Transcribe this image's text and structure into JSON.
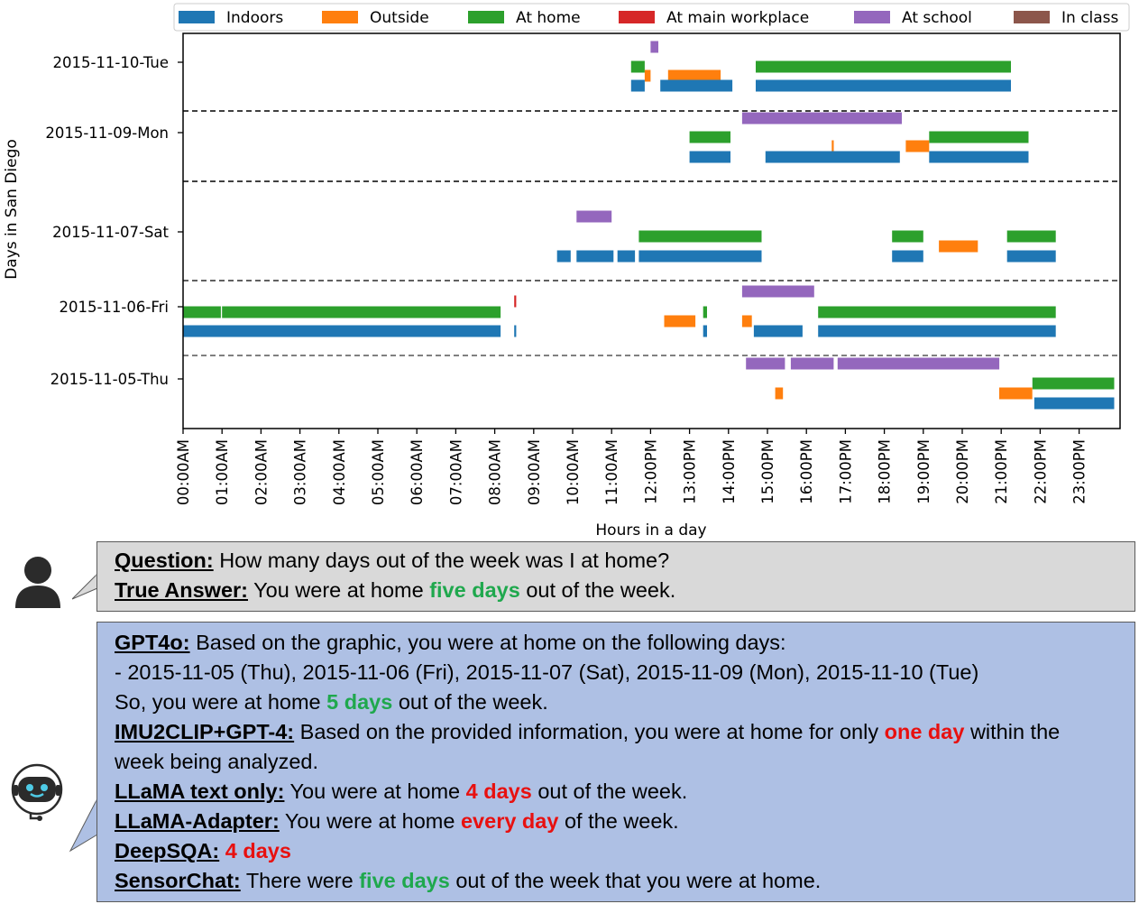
{
  "chart_data": {
    "type": "timeline",
    "ylabel": "Days in San Diego",
    "xlabel": "Hours in a day",
    "xlim": [
      0,
      24
    ],
    "x_ticks": [
      "00:00AM",
      "01:00AM",
      "02:00AM",
      "03:00AM",
      "04:00AM",
      "05:00AM",
      "06:00AM",
      "07:00AM",
      "08:00AM",
      "09:00AM",
      "10:00AM",
      "11:00AM",
      "12:00PM",
      "13:00PM",
      "14:00PM",
      "15:00PM",
      "16:00PM",
      "17:00PM",
      "18:00PM",
      "19:00PM",
      "20:00PM",
      "21:00PM",
      "22:00PM",
      "23:00PM"
    ],
    "days": [
      "2015-11-10-Tue",
      "2015-11-09-Mon",
      "2015-11-07-Sat",
      "2015-11-06-Fri",
      "2015-11-05-Thu"
    ],
    "legend": [
      {
        "name": "Indoors",
        "color": "#1f77b4"
      },
      {
        "name": "Outside",
        "color": "#ff7f0e"
      },
      {
        "name": "At home",
        "color": "#2ca02c"
      },
      {
        "name": "At main workplace",
        "color": "#d62728"
      },
      {
        "name": "At school",
        "color": "#9467bd"
      },
      {
        "name": "In class",
        "color": "#8c564b"
      }
    ],
    "legend_position": "top",
    "series": [
      {
        "day": "2015-11-10-Tue",
        "label": "At school",
        "intervals": [
          [
            12.0,
            12.2
          ]
        ]
      },
      {
        "day": "2015-11-10-Tue",
        "label": "At home",
        "intervals": [
          [
            11.5,
            11.85
          ],
          [
            14.7,
            21.25
          ]
        ]
      },
      {
        "day": "2015-11-10-Tue",
        "label": "Outside",
        "intervals": [
          [
            11.85,
            12.0
          ],
          [
            12.45,
            13.8
          ]
        ]
      },
      {
        "day": "2015-11-10-Tue",
        "label": "Indoors",
        "intervals": [
          [
            11.5,
            11.85
          ],
          [
            12.25,
            14.1
          ],
          [
            14.7,
            21.25
          ]
        ]
      },
      {
        "day": "2015-11-09-Mon",
        "label": "At school",
        "intervals": [
          [
            14.35,
            18.45
          ]
        ]
      },
      {
        "day": "2015-11-09-Mon",
        "label": "At home",
        "intervals": [
          [
            13.0,
            14.05
          ],
          [
            19.15,
            21.7
          ]
        ]
      },
      {
        "day": "2015-11-09-Mon",
        "label": "Outside",
        "intervals": [
          [
            16.65,
            16.7
          ],
          [
            18.55,
            19.15
          ]
        ]
      },
      {
        "day": "2015-11-09-Mon",
        "label": "Indoors",
        "intervals": [
          [
            13.0,
            14.05
          ],
          [
            14.95,
            18.4
          ],
          [
            19.15,
            21.7
          ]
        ]
      },
      {
        "day": "2015-11-07-Sat",
        "label": "At school",
        "intervals": [
          [
            10.1,
            11.0
          ]
        ]
      },
      {
        "day": "2015-11-07-Sat",
        "label": "At home",
        "intervals": [
          [
            11.7,
            14.85
          ],
          [
            18.2,
            19.0
          ],
          [
            21.15,
            22.4
          ]
        ]
      },
      {
        "day": "2015-11-07-Sat",
        "label": "Outside",
        "intervals": [
          [
            19.4,
            20.4
          ]
        ]
      },
      {
        "day": "2015-11-07-Sat",
        "label": "Indoors",
        "intervals": [
          [
            9.6,
            9.95
          ],
          [
            10.1,
            11.05
          ],
          [
            11.15,
            11.6
          ],
          [
            11.7,
            14.85
          ],
          [
            18.2,
            19.0
          ],
          [
            21.15,
            22.4
          ]
        ]
      },
      {
        "day": "2015-11-06-Fri",
        "label": "At school",
        "intervals": [
          [
            14.35,
            16.2
          ]
        ]
      },
      {
        "day": "2015-11-06-Fri",
        "label": "At main workplace",
        "intervals": [
          [
            8.5,
            8.55
          ]
        ]
      },
      {
        "day": "2015-11-06-Fri",
        "label": "At home",
        "intervals": [
          [
            0.0,
            0.97
          ],
          [
            1.0,
            8.15
          ],
          [
            13.35,
            13.45
          ],
          [
            16.3,
            22.4
          ]
        ]
      },
      {
        "day": "2015-11-06-Fri",
        "label": "Outside",
        "intervals": [
          [
            12.35,
            13.15
          ],
          [
            14.35,
            14.6
          ]
        ]
      },
      {
        "day": "2015-11-06-Fri",
        "label": "Indoors",
        "intervals": [
          [
            0.0,
            8.15
          ],
          [
            8.5,
            8.55
          ],
          [
            13.35,
            13.45
          ],
          [
            14.65,
            15.9
          ],
          [
            16.3,
            22.4
          ]
        ]
      },
      {
        "day": "2015-11-05-Thu",
        "label": "At school",
        "intervals": [
          [
            14.45,
            15.45
          ],
          [
            15.6,
            16.7
          ],
          [
            16.8,
            20.95
          ]
        ]
      },
      {
        "day": "2015-11-05-Thu",
        "label": "At home",
        "intervals": [
          [
            21.8,
            23.9
          ]
        ]
      },
      {
        "day": "2015-11-05-Thu",
        "label": "Outside",
        "intervals": [
          [
            15.2,
            15.4
          ],
          [
            20.95,
            21.8
          ]
        ]
      },
      {
        "day": "2015-11-05-Thu",
        "label": "Indoors",
        "intervals": [
          [
            21.85,
            23.9
          ]
        ]
      }
    ]
  },
  "question": {
    "label": "Question:",
    "text": " How many days out of the week was I at home?",
    "answer_label": "True Answer:",
    "answer_pre": " You were at home ",
    "answer_highlight": "five days",
    "answer_post": " out of the week."
  },
  "responses": {
    "gpt4o": {
      "label": "GPT4o:",
      "text": " Based on the graphic, you were at home on the following days:",
      "list_item": "-   2015-11-05 (Thu), 2015-11-06 (Fri), 2015-11-07 (Sat), 2015-11-09 (Mon), 2015-11-10 (Tue)",
      "summary_pre": "So, you were at home ",
      "summary_highlight": "5 days",
      "summary_post": " out of the week."
    },
    "imu2clip": {
      "label": "IMU2CLIP+GPT-4:",
      "pre": " Based on the provided information, you were at home for only ",
      "highlight": "one day",
      "post": " within the",
      "post2": "week being analyzed."
    },
    "llama_text": {
      "label": "LLaMA text only:",
      "pre": " You were at home ",
      "highlight": "4 days",
      "post": " out of the week."
    },
    "llama_adapter": {
      "label": "LLaMA-Adapter:",
      "pre": " You were at home ",
      "highlight": "every day",
      "post": " of the week."
    },
    "deepsqa": {
      "label": "DeepSQA:",
      "highlight": " 4 days"
    },
    "sensorchat": {
      "label": "SensorChat:",
      "pre": " There were ",
      "highlight": "five days",
      "post": " out of the week that you were at home."
    }
  },
  "icons": {
    "user": "user-avatar-icon",
    "bot": "robot-avatar-icon"
  }
}
